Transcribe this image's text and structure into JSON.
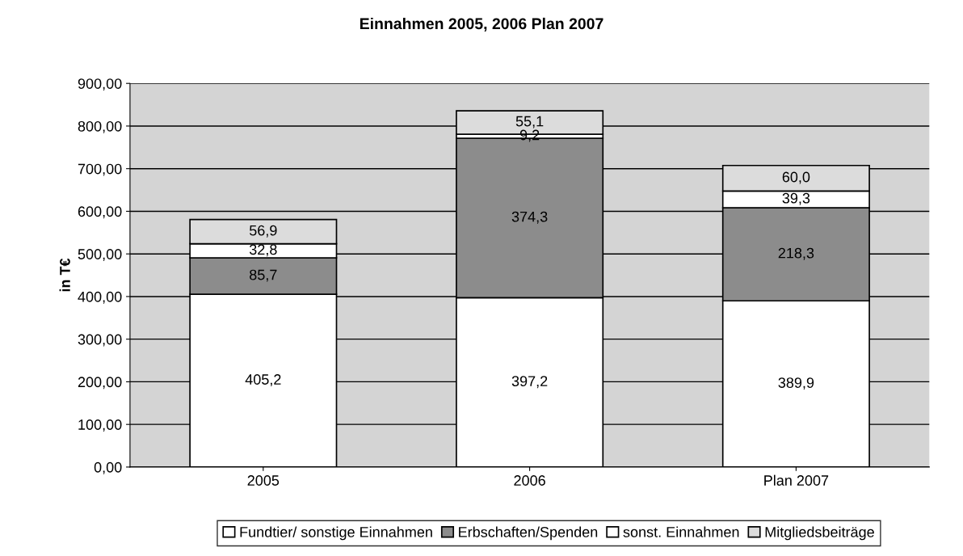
{
  "chart_data": {
    "type": "bar",
    "title": "Einnahmen 2005, 2006 Plan 2007",
    "ylabel": "in T€",
    "stacked": true,
    "categories": [
      "2005",
      "2006",
      "Plan 2007"
    ],
    "series": [
      {
        "name": "Fundtier/ sonstige Einnahmen",
        "color": "#ffffff",
        "values": [
          405.2,
          397.2,
          389.9
        ],
        "value_labels": [
          "405,2",
          "397,2",
          "389,9"
        ]
      },
      {
        "name": "Erbschaften/Spenden",
        "color": "#8c8c8c",
        "values": [
          85.7,
          374.3,
          218.3
        ],
        "value_labels": [
          "85,7",
          "374,3",
          "218,3"
        ]
      },
      {
        "name": "sonst. Einnahmen",
        "color": "#ffffff",
        "values": [
          32.8,
          9.2,
          39.3
        ],
        "value_labels": [
          "32,8",
          "9,2",
          "39,3"
        ]
      },
      {
        "name": "Mitgliedsbeiträge",
        "color": "#dcdcdc",
        "values": [
          56.9,
          55.1,
          60.0
        ],
        "value_labels": [
          "56,9",
          "55,1",
          "60,0"
        ]
      }
    ],
    "ylim": [
      0,
      900
    ],
    "yticks": [
      {
        "value": 0,
        "label": "0,00"
      },
      {
        "value": 100,
        "label": "100,00"
      },
      {
        "value": 200,
        "label": "200,00"
      },
      {
        "value": 300,
        "label": "300,00"
      },
      {
        "value": 400,
        "label": "400,00"
      },
      {
        "value": 500,
        "label": "500,00"
      },
      {
        "value": 600,
        "label": "600,00"
      },
      {
        "value": 700,
        "label": "700,00"
      },
      {
        "value": 800,
        "label": "800,00"
      },
      {
        "value": 900,
        "label": "900,00"
      }
    ],
    "grid": "y",
    "legend": "bottom"
  }
}
